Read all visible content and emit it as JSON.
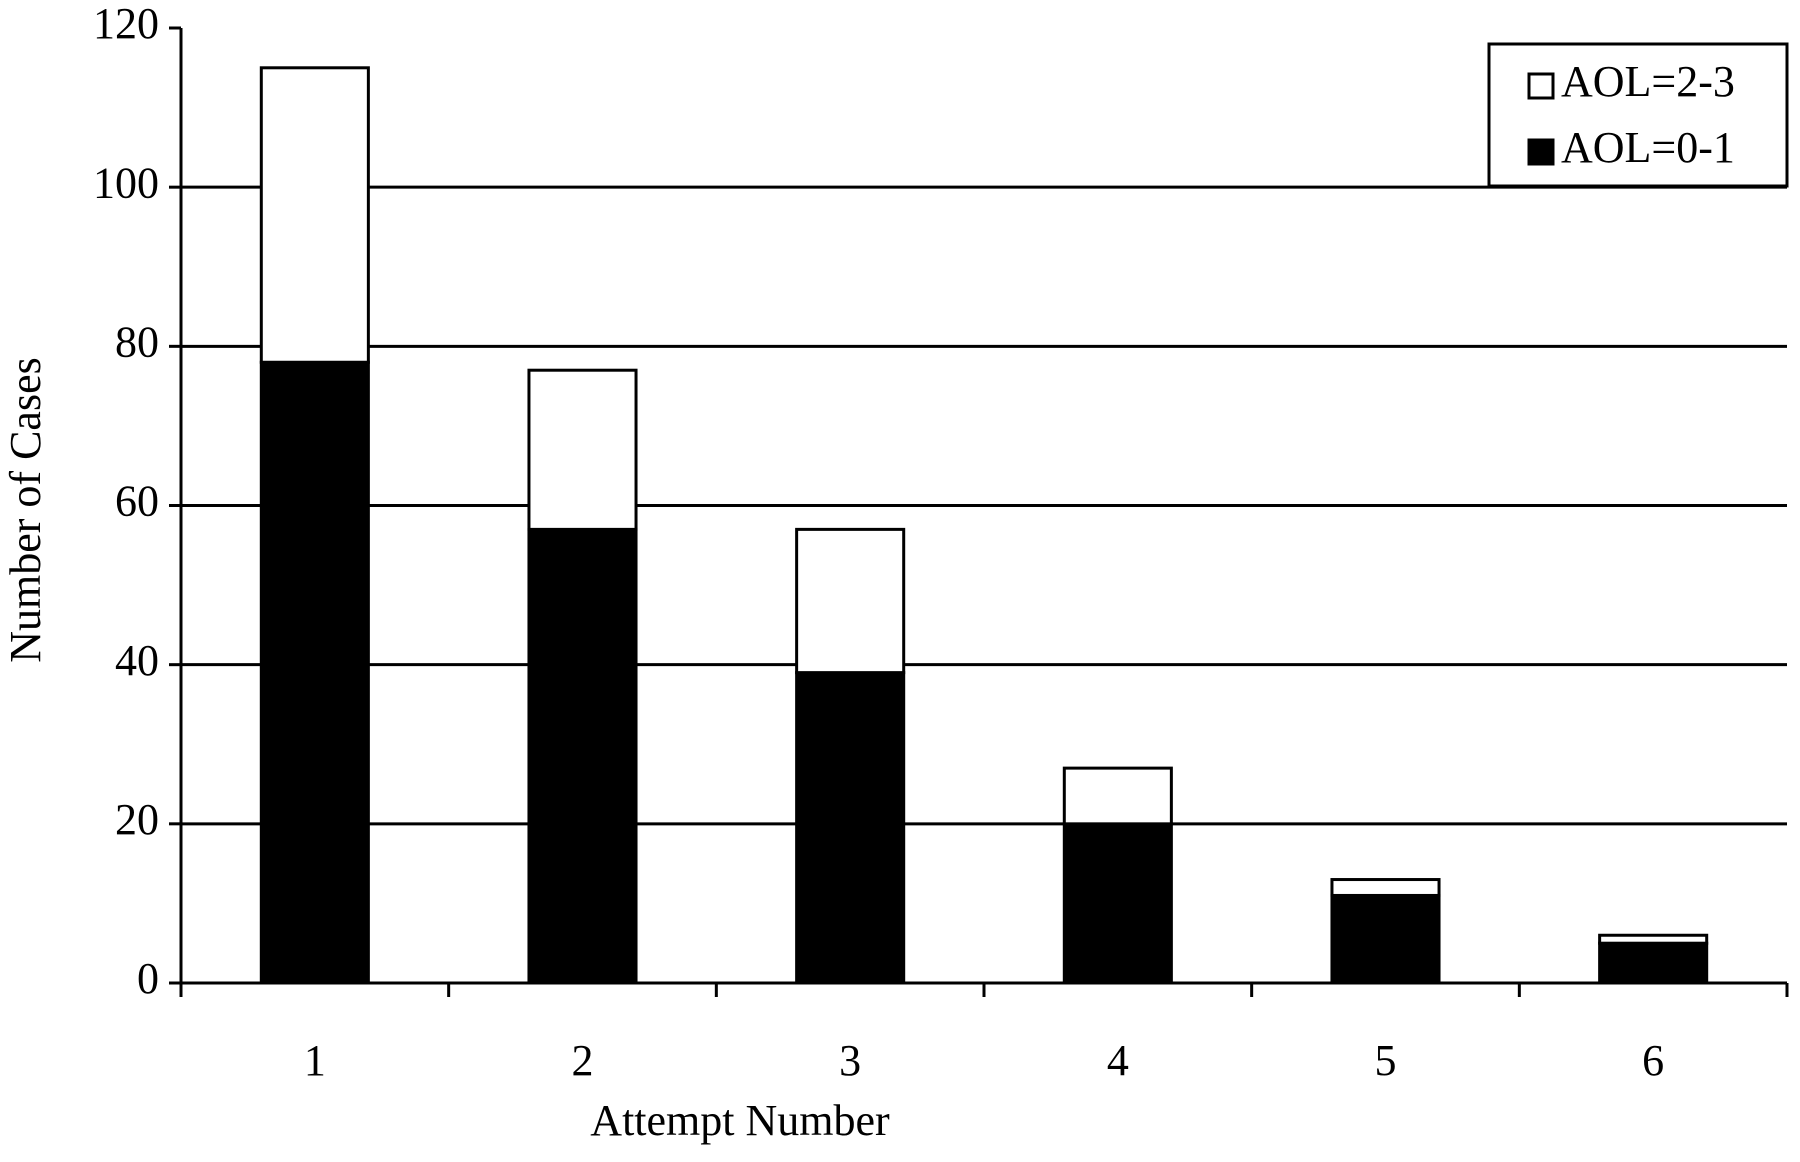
{
  "chart_data": {
    "type": "stacked-bar",
    "x_label": "Attempt Number",
    "y_label": "Number of Cases",
    "categories": [
      "1",
      "2",
      "3",
      "4",
      "5",
      "6"
    ],
    "series": [
      {
        "name": "AOL=0-1",
        "color": "#000000",
        "values": [
          78,
          57,
          39,
          20,
          11,
          5
        ]
      },
      {
        "name": "AOL=2-3",
        "color": "#ffffff",
        "values": [
          37,
          20,
          18,
          7,
          2,
          1
        ]
      }
    ],
    "ylim": [
      0,
      120
    ],
    "yticks": [
      0,
      20,
      40,
      60,
      80,
      100,
      120
    ],
    "grid": true,
    "legend": "upper right"
  }
}
